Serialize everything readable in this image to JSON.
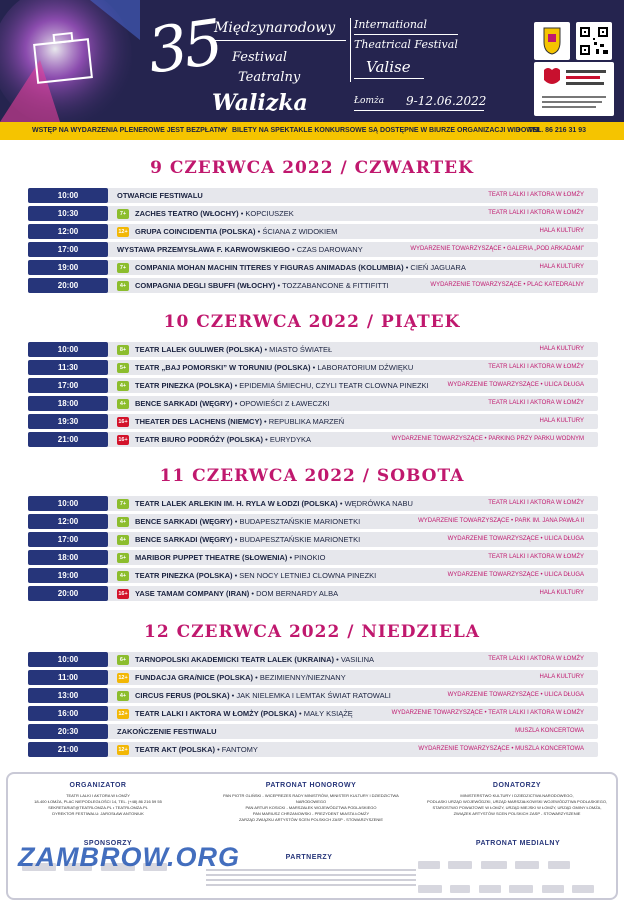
{
  "header": {
    "number": "35",
    "title_pl": [
      "Międzynarodowy",
      "Festiwal",
      "Teatralny",
      "Walizka"
    ],
    "title_en": [
      "International",
      "Theatrical Festival",
      "Valise"
    ],
    "city": "Łomża",
    "dates": "9-12.06.2022",
    "colors": {
      "header_bg": "#25244f",
      "info_bar": "#f5c400",
      "accent": "#c0186e",
      "time_cell": "#26357a"
    }
  },
  "info_bar": {
    "item1": "WSTĘP NA WYDARZENIA PLENEROWE JEST BEZPŁATNY",
    "item2": "BILETY NA SPEKTAKLE KONKURSOWE SĄ DOSTĘPNE W BIURZE ORGANIZACJI WIDOWNI",
    "item3": "TEL. 86 216 31 93"
  },
  "days": [
    {
      "title": "9 CZERWCA 2022 / CZWARTEK",
      "events": [
        {
          "time": "10:00",
          "age": "",
          "company": "OTWARCIE FESTIWALU",
          "show": "",
          "venue": "TEATR LALKI I AKTORA W ŁOMŻY"
        },
        {
          "time": "10:30",
          "age": "7+",
          "company": "ZACHES TEATRO (WŁOCHY)",
          "show": "KOPCIUSZEK",
          "venue": "TEATR LALKI I AKTORA W ŁOMŻY"
        },
        {
          "time": "12:00",
          "age": "12+",
          "company": "GRUPA COINCIDENTIA (POLSKA)",
          "show": "ŚCIANA Z WIDOKIEM",
          "venue": "HALA KULTURY"
        },
        {
          "time": "17:00",
          "age": "",
          "company": "WYSTAWA PRZEMYSŁAWA F. KARWOWSKIEGO",
          "show": "CZAS DAROWANY",
          "venue": "WYDARZENIE TOWARZYSZĄCE • GALERIA „POD ARKADAMI”"
        },
        {
          "time": "19:00",
          "age": "7+",
          "company": "COMPANIA MOHAN MACHIN TITERES Y FIGURAS ANIMADAS (KOLUMBIA)",
          "show": "CIEŃ JAGUARA",
          "venue": "HALA KULTURY"
        },
        {
          "time": "20:00",
          "age": "4+",
          "company": "COMPAGNIA DEGLI SBUFFI (WŁOCHY)",
          "show": "TOZZABANCONE & FITTIFITTI",
          "venue": "WYDARZENIE TOWARZYSZĄCE • PLAC KATEDRALNY"
        }
      ]
    },
    {
      "title": "10 CZERWCA 2022 / PIĄTEK",
      "events": [
        {
          "time": "10:00",
          "age": "8+",
          "company": "TEATR LALEK GULIWER (POLSKA)",
          "show": "MIASTO ŚWIATEŁ",
          "venue": "HALA KULTURY"
        },
        {
          "time": "11:30",
          "age": "5+",
          "company": "TEATR „BAJ POMORSKI” W TORUNIU (POLSKA)",
          "show": "LABORATORIUM DŹWIĘKU",
          "venue": "TEATR LALKI I AKTORA W ŁOMŻY"
        },
        {
          "time": "17:00",
          "age": "4+",
          "company": "TEATR PINEZKA (POLSKA)",
          "show": "EPIDEMIA ŚMIECHU, CZYLI TEATR CLOWNA PINEZKI",
          "venue": "WYDARZENIE TOWARZYSZĄCE • ULICA DŁUGA"
        },
        {
          "time": "18:00",
          "age": "4+",
          "company": "BENCE SARKADI (WĘGRY)",
          "show": "OPOWIEŚCI Z ŁAWECZKI",
          "venue": "TEATR LALKI I AKTORA W ŁOMŻY"
        },
        {
          "time": "19:30",
          "age": "16+",
          "company": "THEATER DES LACHENS (NIEMCY)",
          "show": "REPUBLIKA MARZEŃ",
          "venue": "HALA KULTURY"
        },
        {
          "time": "21:00",
          "age": "16+",
          "company": "TEATR BIURO PODRÓŻY (POLSKA)",
          "show": "EURYDYKA",
          "venue": "WYDARZENIE TOWARZYSZĄCE • PARKING PRZY PARKU WODNYM"
        }
      ]
    },
    {
      "title": "11 CZERWCA 2022 / SOBOTA",
      "events": [
        {
          "time": "10:00",
          "age": "7+",
          "company": "TEATR LALEK ARLEKIN IM. H. RYLA W ŁODZI (POLSKA)",
          "show": "WĘDRÓWKA NABU",
          "venue": "TEATR LALKI I AKTORA W ŁOMŻY"
        },
        {
          "time": "12:00",
          "age": "4+",
          "company": "BENCE SARKADI (WĘGRY)",
          "show": "BUDAPESZTAŃSKIE MARIONETKI",
          "venue": "WYDARZENIE TOWARZYSZĄCE • PARK IM. JANA PAWŁA II"
        },
        {
          "time": "17:00",
          "age": "4+",
          "company": "BENCE SARKADI (WĘGRY)",
          "show": "BUDAPESZTAŃSKIE MARIONETKI",
          "venue": "WYDARZENIE TOWARZYSZĄCE • ULICA DŁUGA"
        },
        {
          "time": "18:00",
          "age": "5+",
          "company": "MARIBOR PUPPET THEATRE (SŁOWENIA)",
          "show": "PINOKIO",
          "venue": "TEATR LALKI I AKTORA W ŁOMŻY"
        },
        {
          "time": "19:00",
          "age": "4+",
          "company": "TEATR PINEZKA (POLSKA)",
          "show": "SEN NOCY LETNIEJ CLOWNA PINEZKI",
          "venue": "WYDARZENIE TOWARZYSZĄCE • ULICA DŁUGA"
        },
        {
          "time": "20:00",
          "age": "16+",
          "company": "YASE TAMAM COMPANY (IRAN)",
          "show": "DOM BERNARDY ALBA",
          "venue": "HALA KULTURY"
        }
      ]
    },
    {
      "title": "12 CZERWCA 2022 / NIEDZIELA",
      "events": [
        {
          "time": "10:00",
          "age": "6+",
          "company": "TARNOPOLSKI AKADEMICKI TEATR LALEK (UKRAINA)",
          "show": "VASILINA",
          "venue": "TEATR LALKI I AKTORA W ŁOMŻY"
        },
        {
          "time": "11:00",
          "age": "12+",
          "company": "FUNDACJA GRA/NICE (POLSKA)",
          "show": "BEZIMIENNY/NIEZNANY",
          "venue": "HALA KULTURY"
        },
        {
          "time": "13:00",
          "age": "4+",
          "company": "CIRCUS FERUS (POLSKA)",
          "show": "JAK NIELEMKA I LEMTAK ŚWIAT RATOWALI",
          "venue": "WYDARZENIE TOWARZYSZĄCE • ULICA DŁUGA"
        },
        {
          "time": "16:00",
          "age": "12+",
          "company": "TEATR LALKI I AKTORA W ŁOMŻY (POLSKA)",
          "show": "MAŁY KSIĄŻĘ",
          "venue": "WYDARZENIE TOWARZYSZĄCE • TEATR LALKI I AKTORA W ŁOMŻY"
        },
        {
          "time": "20:30",
          "age": "",
          "company": "ZAKOŃCZENIE FESTIWALU",
          "show": "",
          "venue": "MUSZLA KONCERTOWA"
        },
        {
          "time": "21:00",
          "age": "12+",
          "company": "TEATR AKT (POLSKA)",
          "show": "FANTOMY",
          "venue": "WYDARZENIE TOWARZYSZĄCE • MUSZLA KONCERTOWA"
        }
      ]
    }
  ],
  "footer": {
    "organizer_heading": "ORGANIZATOR",
    "organizer_lines": [
      "TEATR LALKI I AKTORA W ŁOMŻY",
      "18-400 ŁOMŻA, PLAC NIEPODLEGŁOŚCI 14, TEL. (+48) 86 216 59 55",
      "SEKRETARIAT@TEATRLOMZA.PL • TEATRLOMZA.PL",
      "DYREKTOR FESTIWALU: JAROSŁAW ANTONIUK"
    ],
    "patronage_heading": "PATRONAT HONOROWY",
    "patronage_lines": [
      "PAN PIOTR GLIŃSKI - WICEPREZES RADY MINISTRÓW, MINISTER KULTURY I DZIEDZICTWA NARODOWEGO",
      "PAN ARTUR KOSICKI - MARSZAŁEK WOJEWÓDZTWA PODLASKIEGO",
      "PAN MARIUSZ CHRZANOWSKI - PREZYDENT MIASTA ŁOMŻY",
      "ZARZĄD ZWIĄZKU ARTYSTÓW SCEN POLSKICH ZASP - STOWARZYSZENIE"
    ],
    "donators_heading": "DONATORZY",
    "donators_lines": [
      "MINISTERSTWO KULTURY I DZIEDZICTWA NARODOWEGO,",
      "PODLASKI URZĄD WOJEWÓDZKI, URZĄD MARSZAŁKOWSKI WOJEWÓDZTWA PODLASKIEGO,",
      "STAROSTWO POWIATOWE W ŁOMŻY, URZĄD MIEJSKI W ŁOMŻY, URZĄD GMINY ŁOMŻA,",
      "ZWIĄZEK ARTYSTÓW SCEN POLSKICH ZASP - STOWARZYSZENIE"
    ],
    "sponsors_heading": "SPONSORZY",
    "partners_heading": "PARTNERZY",
    "media_heading": "PATRONAT MEDIALNY",
    "watermark": "ZAMBROW.ORG"
  }
}
